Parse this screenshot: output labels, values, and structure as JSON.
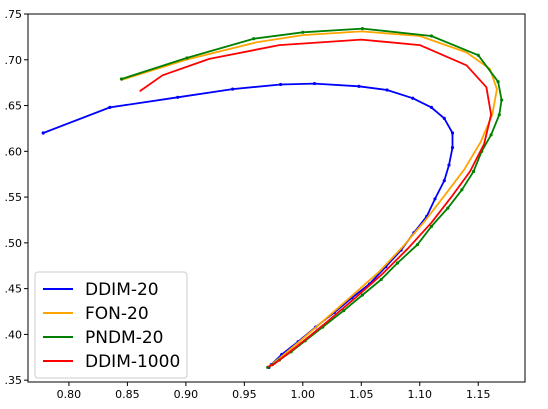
{
  "chart_data": {
    "type": "line",
    "title": "",
    "xlabel": "",
    "ylabel": "",
    "xlim": [
      0.765,
      1.19
    ],
    "ylim": [
      0.348,
      0.75
    ],
    "x_ticks": [
      "0.80",
      "0.85",
      "0.90",
      "0.95",
      "1.00",
      "1.05",
      "1.10",
      "1.15"
    ],
    "x_tick_values": [
      0.8,
      0.85,
      0.9,
      0.95,
      1.0,
      1.05,
      1.1,
      1.15
    ],
    "y_ticks": [
      ".35",
      ".40",
      ".45",
      ".50",
      ".55",
      ".60",
      ".65",
      ".70",
      ".75"
    ],
    "y_tick_values": [
      0.35,
      0.4,
      0.45,
      0.5,
      0.55,
      0.6,
      0.65,
      0.7,
      0.75
    ],
    "grid": false,
    "legend": {
      "placement": "bottom-left"
    },
    "series": [
      {
        "name": "DDIM-20",
        "color": "#0000ff",
        "markers": true,
        "points": [
          [
            0.778,
            0.62
          ],
          [
            0.835,
            0.648
          ],
          [
            0.893,
            0.659
          ],
          [
            0.94,
            0.668
          ],
          [
            0.981,
            0.673
          ],
          [
            1.01,
            0.674
          ],
          [
            1.048,
            0.671
          ],
          [
            1.072,
            0.667
          ],
          [
            1.094,
            0.658
          ],
          [
            1.11,
            0.648
          ],
          [
            1.121,
            0.636
          ],
          [
            1.128,
            0.62
          ],
          [
            1.128,
            0.604
          ],
          [
            1.125,
            0.585
          ],
          [
            1.121,
            0.568
          ],
          [
            1.113,
            0.548
          ],
          [
            1.106,
            0.529
          ],
          [
            1.095,
            0.511
          ],
          [
            1.084,
            0.492
          ],
          [
            1.071,
            0.474
          ],
          [
            1.057,
            0.455
          ],
          [
            1.042,
            0.44
          ],
          [
            1.027,
            0.424
          ],
          [
            1.011,
            0.408
          ],
          [
            0.996,
            0.392
          ],
          [
            0.982,
            0.378
          ],
          [
            0.973,
            0.367
          ],
          [
            0.971,
            0.364
          ]
        ]
      },
      {
        "name": "FON-20",
        "color": "#ffa500",
        "markers": false,
        "points": [
          [
            0.845,
            0.678
          ],
          [
            0.9,
            0.7
          ],
          [
            0.96,
            0.719
          ],
          [
            1.0,
            0.727
          ],
          [
            1.05,
            0.731
          ],
          [
            1.1,
            0.726
          ],
          [
            1.14,
            0.708
          ],
          [
            1.16,
            0.69
          ],
          [
            1.166,
            0.668
          ],
          [
            1.162,
            0.64
          ],
          [
            1.152,
            0.61
          ],
          [
            1.138,
            0.58
          ],
          [
            1.122,
            0.553
          ],
          [
            1.105,
            0.525
          ],
          [
            1.085,
            0.495
          ],
          [
            1.065,
            0.468
          ],
          [
            1.04,
            0.44
          ],
          [
            1.015,
            0.412
          ],
          [
            0.995,
            0.39
          ],
          [
            0.981,
            0.375
          ],
          [
            0.971,
            0.365
          ]
        ]
      },
      {
        "name": "PNDM-20",
        "color": "#008000",
        "markers": true,
        "points": [
          [
            0.845,
            0.679
          ],
          [
            0.901,
            0.702
          ],
          [
            0.958,
            0.723
          ],
          [
            1.0,
            0.73
          ],
          [
            1.051,
            0.734
          ],
          [
            1.11,
            0.726
          ],
          [
            1.15,
            0.705
          ],
          [
            1.167,
            0.676
          ],
          [
            1.17,
            0.656
          ],
          [
            1.168,
            0.64
          ],
          [
            1.161,
            0.618
          ],
          [
            1.153,
            0.6
          ],
          [
            1.146,
            0.578
          ],
          [
            1.136,
            0.558
          ],
          [
            1.124,
            0.538
          ],
          [
            1.11,
            0.518
          ],
          [
            1.098,
            0.498
          ],
          [
            1.081,
            0.478
          ],
          [
            1.067,
            0.46
          ],
          [
            1.051,
            0.443
          ],
          [
            1.035,
            0.426
          ],
          [
            1.017,
            0.408
          ],
          [
            1.002,
            0.393
          ],
          [
            0.99,
            0.381
          ],
          [
            0.98,
            0.372
          ],
          [
            0.974,
            0.367
          ],
          [
            0.97,
            0.364
          ]
        ]
      },
      {
        "name": "DDIM-1000",
        "color": "#ff0000",
        "markers": false,
        "points": [
          [
            0.861,
            0.666
          ],
          [
            0.88,
            0.683
          ],
          [
            0.92,
            0.701
          ],
          [
            0.98,
            0.716
          ],
          [
            1.05,
            0.722
          ],
          [
            1.1,
            0.716
          ],
          [
            1.14,
            0.694
          ],
          [
            1.157,
            0.67
          ],
          [
            1.161,
            0.64
          ],
          [
            1.155,
            0.608
          ],
          [
            1.143,
            0.578
          ],
          [
            1.127,
            0.55
          ],
          [
            1.11,
            0.522
          ],
          [
            1.09,
            0.494
          ],
          [
            1.068,
            0.466
          ],
          [
            1.045,
            0.44
          ],
          [
            1.02,
            0.413
          ],
          [
            1.0,
            0.392
          ],
          [
            0.985,
            0.377
          ],
          [
            0.976,
            0.368
          ],
          [
            0.971,
            0.365
          ]
        ]
      }
    ]
  }
}
